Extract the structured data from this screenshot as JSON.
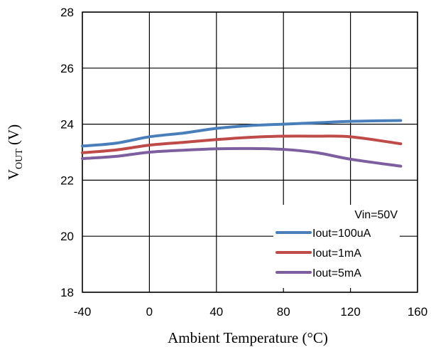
{
  "chart_data": {
    "type": "line",
    "title": "",
    "xlabel": "Ambient  Temperature (°C)",
    "ylabel_main": "V",
    "ylabel_sub": "OUT",
    "ylabel_unit": " (V)",
    "xlim": [
      -40,
      160
    ],
    "ylim": [
      18,
      28
    ],
    "xticks": [
      -40,
      0,
      40,
      80,
      120,
      160
    ],
    "yticks": [
      18,
      20,
      22,
      24,
      26,
      28
    ],
    "grid": true,
    "legend_position": "bottom-right",
    "annotation": "Vin=50V",
    "series": [
      {
        "name": "Iout=100uA",
        "color": "#4a7ebb",
        "x": [
          -40,
          -20,
          0,
          20,
          40,
          60,
          80,
          100,
          120,
          150
        ],
        "y": [
          23.22,
          23.32,
          23.55,
          23.68,
          23.85,
          23.95,
          24.0,
          24.05,
          24.1,
          24.13
        ]
      },
      {
        "name": "Iout=1mA",
        "color": "#be4b48",
        "x": [
          -40,
          -20,
          0,
          20,
          40,
          60,
          80,
          100,
          120,
          150
        ],
        "y": [
          22.98,
          23.08,
          23.25,
          23.35,
          23.45,
          23.53,
          23.57,
          23.57,
          23.55,
          23.3
        ]
      },
      {
        "name": "Iout=5mA",
        "color": "#7d5fa0",
        "x": [
          -40,
          -20,
          0,
          20,
          40,
          60,
          80,
          100,
          120,
          150
        ],
        "y": [
          22.77,
          22.85,
          23.0,
          23.07,
          23.12,
          23.13,
          23.1,
          22.98,
          22.75,
          22.5
        ]
      }
    ]
  }
}
